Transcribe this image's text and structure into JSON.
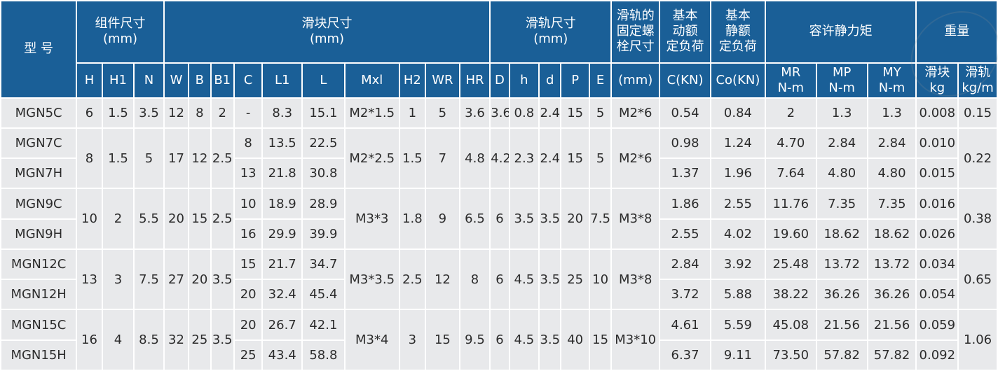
{
  "header": {
    "model": "型 号",
    "assembly": "组件尺寸\n(mm)",
    "block": "滑块尺寸\n(mm)",
    "rail": "滑轨尺寸\n(mm)",
    "bolt": "滑轨的\n固定螺\n栓尺寸",
    "dynamic": "基本\n动额\n定负荷",
    "static": "基本\n静额\n定负荷",
    "moment": "容许静力矩",
    "weight": "重量",
    "sub": {
      "H": "H",
      "H1": "H1",
      "N": "N",
      "W": "W",
      "B": "B",
      "B1": "B1",
      "C": "C",
      "L1": "L1",
      "L": "L",
      "Mxl": "Mxl",
      "H2": "H2",
      "WR": "WR",
      "HR": "HR",
      "D": "D",
      "h": "h",
      "d": "d",
      "P": "P",
      "E": "E",
      "bolt_unit": "(mm)",
      "C_unit": "C(KN)",
      "Co_unit": "Co(KN)",
      "MR": "MR\nN-m",
      "MP": "MP\nN-m",
      "MY": "MY\nN-m",
      "block_w": "滑块\nkg",
      "rail_w": "滑轨\nkg/m"
    }
  },
  "rows": {
    "mgn5c": {
      "model": "MGN5C",
      "H": "6",
      "H1": "1.5",
      "N": "3.5",
      "W": "12",
      "B": "8",
      "B1": "2",
      "C": "-",
      "L1": "8.3",
      "L": "15.1",
      "Mxl": "M2*1.5",
      "H2": "1",
      "WR": "5",
      "HR": "3.6",
      "D": "3.6",
      "h": "0.8",
      "d": "2.4",
      "P": "15",
      "E": "5",
      "bolt": "M2*6",
      "Cdyn": "0.54",
      "Co": "0.84",
      "MR": "2",
      "MP": "1.3",
      "MY": "1.3",
      "wblock": "0.008",
      "wrail": "0.15"
    },
    "mgn7": {
      "H": "8",
      "H1": "1.5",
      "N": "5",
      "W": "17",
      "B": "12",
      "B1": "2.5",
      "Mxl": "M2*2.5",
      "H2": "1.5",
      "WR": "7",
      "HR": "4.8",
      "D": "4.2",
      "h": "2.3",
      "d": "2.4",
      "P": "15",
      "E": "5",
      "bolt": "M2*6",
      "wrail": "0.22",
      "c": {
        "model": "MGN7C",
        "C": "8",
        "L1": "13.5",
        "L": "22.5",
        "Cdyn": "0.98",
        "Co": "1.24",
        "MR": "4.70",
        "MP": "2.84",
        "MY": "2.84",
        "wblock": "0.010"
      },
      "h_": {
        "model": "MGN7H",
        "C": "13",
        "L1": "21.8",
        "L": "30.8",
        "Cdyn": "1.37",
        "Co": "1.96",
        "MR": "7.64",
        "MP": "4.80",
        "MY": "4.80",
        "wblock": "0.015"
      }
    },
    "mgn9": {
      "H": "10",
      "H1": "2",
      "N": "5.5",
      "W": "20",
      "B": "15",
      "B1": "2.5",
      "Mxl": "M3*3",
      "H2": "1.8",
      "WR": "9",
      "HR": "6.5",
      "D": "6",
      "h": "3.5",
      "d": "3.5",
      "P": "20",
      "E": "7.5",
      "bolt": "M3*8",
      "wrail": "0.38",
      "c": {
        "model": "MGN9C",
        "C": "10",
        "L1": "18.9",
        "L": "28.9",
        "Cdyn": "1.86",
        "Co": "2.55",
        "MR": "11.76",
        "MP": "7.35",
        "MY": "7.35",
        "wblock": "0.016"
      },
      "h_": {
        "model": "MGN9H",
        "C": "16",
        "L1": "29.9",
        "L": "39.9",
        "Cdyn": "2.55",
        "Co": "4.02",
        "MR": "19.60",
        "MP": "18.62",
        "MY": "18.62",
        "wblock": "0.026"
      }
    },
    "mgn12": {
      "H": "13",
      "H1": "3",
      "N": "7.5",
      "W": "27",
      "B": "20",
      "B1": "3.5",
      "Mxl": "M3*3.5",
      "H2": "2.5",
      "WR": "12",
      "HR": "8",
      "D": "6",
      "h": "4.5",
      "d": "3.5",
      "P": "25",
      "E": "10",
      "bolt": "M3*8",
      "wrail": "0.65",
      "c": {
        "model": "MGN12C",
        "C": "15",
        "L1": "21.7",
        "L": "34.7",
        "Cdyn": "2.84",
        "Co": "3.92",
        "MR": "25.48",
        "MP": "13.72",
        "MY": "13.72",
        "wblock": "0.034"
      },
      "h_": {
        "model": "MGN12H",
        "C": "20",
        "L1": "32.4",
        "L": "45.4",
        "Cdyn": "3.72",
        "Co": "5.88",
        "MR": "38.22",
        "MP": "36.26",
        "MY": "36.26",
        "wblock": "0.054"
      }
    },
    "mgn15": {
      "H": "16",
      "H1": "4",
      "N": "8.5",
      "W": "32",
      "B": "25",
      "B1": "3.5",
      "Mxl": "M3*4",
      "H2": "3",
      "WR": "15",
      "HR": "9.5",
      "D": "6",
      "h": "4.5",
      "d": "3.5",
      "P": "40",
      "E": "15",
      "bolt": "M3*10",
      "wrail": "1.06",
      "c": {
        "model": "MGN15C",
        "C": "20",
        "L1": "26.7",
        "L": "42.1",
        "Cdyn": "4.61",
        "Co": "5.59",
        "MR": "45.08",
        "MP": "21.56",
        "MY": "21.56",
        "wblock": "0.059"
      },
      "h_": {
        "model": "MGN15H",
        "C": "25",
        "L1": "43.4",
        "L": "58.8",
        "Cdyn": "6.37",
        "Co": "9.11",
        "MR": "73.50",
        "MP": "57.82",
        "MY": "57.82",
        "wblock": "0.092"
      }
    }
  },
  "colors": {
    "header_bg": "#1a5f97",
    "body_bg": "#e8e9eb",
    "border": "#ffffff"
  }
}
